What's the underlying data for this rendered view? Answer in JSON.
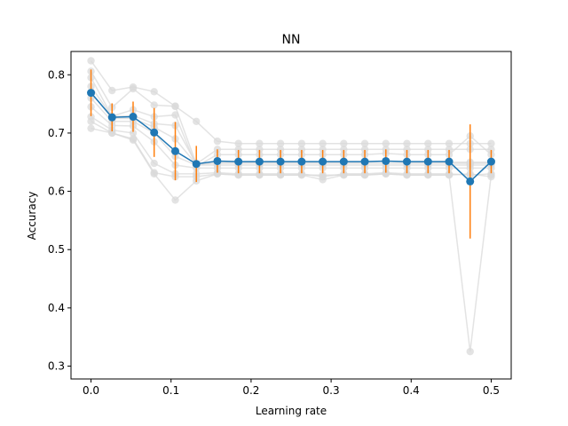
{
  "chart_data": {
    "type": "line",
    "title": "NN",
    "xlabel": "Learning rate",
    "ylabel": "Accuracy",
    "xlim": [
      -0.025,
      0.525
    ],
    "ylim": [
      0.278,
      0.84
    ],
    "xticks": [
      0.0,
      0.1,
      0.2,
      0.3,
      0.4,
      0.5
    ],
    "xtick_labels": [
      "0.0",
      "0.1",
      "0.2",
      "0.3",
      "0.4",
      "0.5"
    ],
    "yticks": [
      0.3,
      0.4,
      0.5,
      0.6,
      0.7,
      0.8
    ],
    "ytick_labels": [
      "0.3",
      "0.4",
      "0.5",
      "0.6",
      "0.7",
      "0.8"
    ],
    "grid": false,
    "x": [
      0.0,
      0.0263,
      0.0526,
      0.0789,
      0.1053,
      0.1316,
      0.1579,
      0.1842,
      0.2105,
      0.2368,
      0.2632,
      0.2895,
      0.3158,
      0.3421,
      0.3684,
      0.3947,
      0.4211,
      0.4474,
      0.4737,
      0.5
    ],
    "mean": {
      "color": "#1f77b4",
      "values": [
        0.769,
        0.727,
        0.728,
        0.701,
        0.669,
        0.647,
        0.652,
        0.651,
        0.651,
        0.651,
        0.651,
        0.651,
        0.651,
        0.651,
        0.652,
        0.651,
        0.651,
        0.651,
        0.617,
        0.651
      ]
    },
    "error_bars": {
      "color": "#ff7f0e",
      "std": [
        0.04,
        0.024,
        0.026,
        0.042,
        0.05,
        0.031,
        0.02,
        0.02,
        0.02,
        0.02,
        0.02,
        0.02,
        0.02,
        0.02,
        0.02,
        0.02,
        0.02,
        0.02,
        0.098,
        0.02
      ]
    },
    "runs_color": "#d9d9d9",
    "runs": [
      [
        0.824,
        0.773,
        0.779,
        0.771,
        0.746,
        0.72,
        0.686,
        0.682,
        0.682,
        0.682,
        0.682,
        0.682,
        0.682,
        0.682,
        0.682,
        0.682,
        0.682,
        0.682,
        0.682,
        0.682
      ],
      [
        0.806,
        0.744,
        0.776,
        0.748,
        0.746,
        0.647,
        0.672,
        0.672,
        0.672,
        0.672,
        0.672,
        0.672,
        0.672,
        0.672,
        0.672,
        0.672,
        0.672,
        0.672,
        0.672,
        0.672
      ],
      [
        0.795,
        0.729,
        0.74,
        0.728,
        0.731,
        0.643,
        0.663,
        0.663,
        0.663,
        0.663,
        0.663,
        0.663,
        0.663,
        0.663,
        0.665,
        0.663,
        0.663,
        0.663,
        0.695,
        0.663
      ],
      [
        0.78,
        0.728,
        0.73,
        0.716,
        0.713,
        0.647,
        0.65,
        0.65,
        0.65,
        0.65,
        0.65,
        0.65,
        0.65,
        0.65,
        0.652,
        0.65,
        0.65,
        0.65,
        0.65,
        0.65
      ],
      [
        0.77,
        0.725,
        0.725,
        0.71,
        0.69,
        0.646,
        0.648,
        0.648,
        0.648,
        0.648,
        0.648,
        0.648,
        0.648,
        0.648,
        0.648,
        0.648,
        0.648,
        0.648,
        0.648,
        0.648
      ],
      [
        0.76,
        0.72,
        0.72,
        0.7,
        0.66,
        0.645,
        0.645,
        0.645,
        0.645,
        0.645,
        0.645,
        0.645,
        0.645,
        0.645,
        0.645,
        0.645,
        0.645,
        0.645,
        0.645,
        0.645
      ],
      [
        0.745,
        0.713,
        0.712,
        0.685,
        0.645,
        0.64,
        0.64,
        0.64,
        0.64,
        0.64,
        0.64,
        0.64,
        0.64,
        0.64,
        0.64,
        0.64,
        0.64,
        0.64,
        0.64,
        0.64
      ],
      [
        0.728,
        0.705,
        0.7,
        0.648,
        0.63,
        0.63,
        0.632,
        0.63,
        0.63,
        0.63,
        0.63,
        0.625,
        0.63,
        0.63,
        0.632,
        0.63,
        0.63,
        0.63,
        0.628,
        0.63
      ],
      [
        0.72,
        0.7,
        0.69,
        0.632,
        0.625,
        0.625,
        0.63,
        0.628,
        0.628,
        0.628,
        0.628,
        0.62,
        0.628,
        0.628,
        0.63,
        0.628,
        0.628,
        0.628,
        0.63,
        0.625
      ],
      [
        0.708,
        0.7,
        0.688,
        0.63,
        0.585,
        0.618,
        0.63,
        0.628,
        0.628,
        0.628,
        0.628,
        0.628,
        0.628,
        0.628,
        0.63,
        0.628,
        0.628,
        0.628,
        0.325,
        0.628
      ]
    ]
  }
}
